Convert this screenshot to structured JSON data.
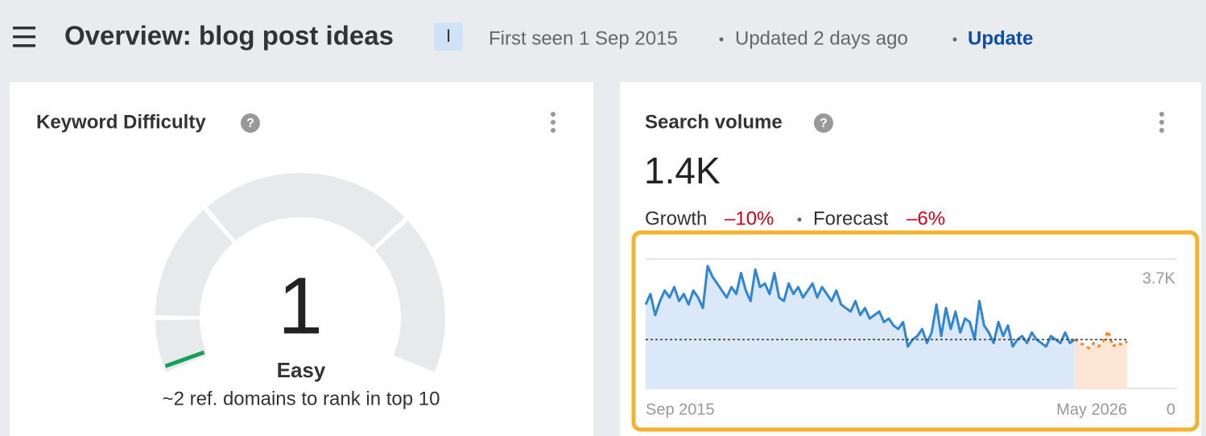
{
  "header": {
    "title": "Overview: blog post ideas",
    "badge": "I",
    "first_seen": "First seen 1 Sep 2015",
    "updated": "Updated 2 days ago",
    "update_link": "Update"
  },
  "keyword_difficulty": {
    "title": "Keyword Difficulty",
    "value": 1,
    "range": [
      0,
      100
    ],
    "label": "Easy",
    "note": "~2 ref. domains to rank in top 10"
  },
  "search_volume": {
    "title": "Search volume",
    "value": "1.4K",
    "growth_label": "Growth",
    "growth": "–10%",
    "forecast_label": "Forecast",
    "forecast": "–6%"
  },
  "chart_data": {
    "type": "area",
    "xlim": [
      0,
      101
    ],
    "xticks": [
      {
        "value": 0,
        "label": "Sep 2015"
      },
      {
        "value": 101,
        "label": "May 2026"
      }
    ],
    "ylim": [
      0,
      3700
    ],
    "yticks": [
      0,
      {
        "value": 3700,
        "label": "3.7K"
      }
    ],
    "grid": true,
    "reference_value": 1400,
    "series": [
      {
        "color": "#2f86d5",
        "fill": "#dbe8f8",
        "values": [
          2400,
          2700,
          2100,
          2500,
          2800,
          2600,
          2900,
          2500,
          2700,
          2400,
          2800,
          2600,
          2300,
          3500,
          3200,
          3000,
          2800,
          2600,
          2900,
          2700,
          3300,
          2800,
          2500,
          3400,
          2900,
          3000,
          2700,
          3300,
          2600,
          2500,
          3000,
          2700,
          2900,
          2600,
          2800,
          3000,
          2600,
          2900,
          2700,
          2500,
          2800,
          2400,
          2300,
          2200,
          2500,
          2100,
          2300,
          2000,
          2100,
          2200,
          1900,
          2000,
          1800,
          1700,
          1900,
          1200,
          1400,
          1500,
          1700,
          1300,
          1600,
          2400,
          1500,
          2300,
          1700,
          2200,
          1600,
          2000,
          1900,
          1400,
          2500,
          1800,
          1600,
          1300,
          1900,
          1500,
          1800,
          1200,
          1400,
          1500,
          1300,
          1600,
          1400,
          1300,
          1200,
          1500,
          1400,
          1300,
          1600,
          1300,
          1400
        ]
      },
      {
        "color": "#f5821f",
        "fill": "#fde6d6",
        "dashed": true,
        "values": [
          null,
          null,
          null,
          null,
          null,
          null,
          null,
          null,
          null,
          null,
          null,
          null,
          null,
          null,
          null,
          null,
          null,
          null,
          null,
          null,
          null,
          null,
          null,
          null,
          null,
          null,
          null,
          null,
          null,
          null,
          null,
          null,
          null,
          null,
          null,
          null,
          null,
          null,
          null,
          null,
          null,
          null,
          null,
          null,
          null,
          null,
          null,
          null,
          null,
          null,
          null,
          null,
          null,
          null,
          null,
          null,
          null,
          null,
          null,
          null,
          null,
          null,
          null,
          null,
          null,
          null,
          null,
          null,
          null,
          null,
          null,
          null,
          null,
          null,
          null,
          null,
          null,
          null,
          null,
          null,
          null,
          null,
          null,
          null,
          null,
          null,
          null,
          null,
          null,
          null,
          1400,
          1300,
          1250,
          1150,
          1300,
          1200,
          1350,
          1650,
          1200,
          1300,
          1250,
          1350
        ]
      }
    ]
  }
}
